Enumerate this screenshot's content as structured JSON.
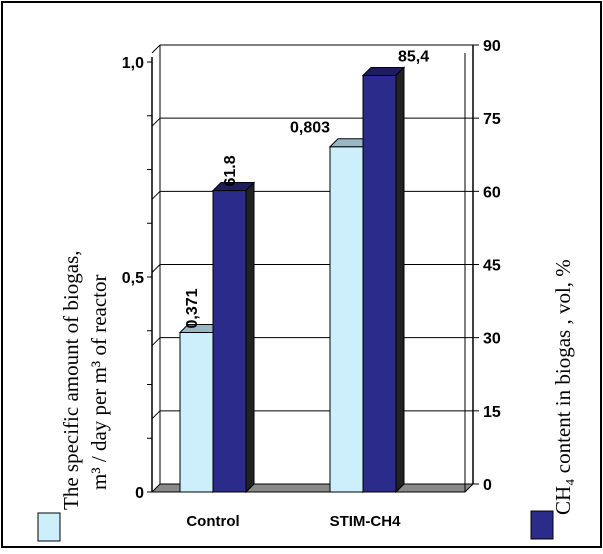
{
  "chart_data": {
    "type": "bar",
    "categories": [
      "Control",
      "STIM-CH4"
    ],
    "series": [
      {
        "axis": "left",
        "values": [
          0.371,
          0.803
        ],
        "labels": [
          "0,371",
          "0,803"
        ],
        "color": "#cdeffb"
      },
      {
        "axis": "right",
        "values": [
          61.8,
          85.4
        ],
        "labels": [
          "61.8",
          "85,4"
        ],
        "color": "#2b2b8c"
      }
    ],
    "ylabel_left_line1": "The specific amount of biogas,",
    "ylabel_left_line2": "m³ / day per m³ of reactor",
    "ylabel_right": "CH₄ content in biogas , vol, %",
    "y_left": {
      "ticks": [
        "0",
        "0,5",
        "1,0"
      ],
      "range": [
        0,
        1.0
      ]
    },
    "y_right": {
      "ticks": [
        "0",
        "15",
        "30",
        "45",
        "60",
        "75",
        "90"
      ],
      "range": [
        0,
        90
      ]
    },
    "grid": true,
    "legend": "bottom-left and bottom-right swatches"
  }
}
